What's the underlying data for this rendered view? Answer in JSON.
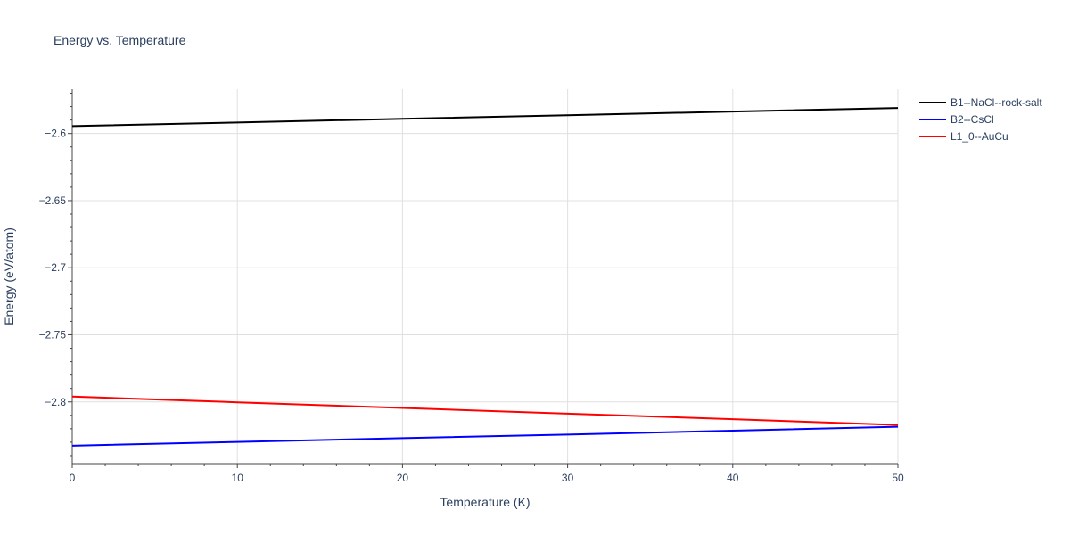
{
  "chart_data": {
    "type": "line",
    "title": "Energy vs. Temperature",
    "xlabel": "Temperature (K)",
    "ylabel": "Energy (eV/atom)",
    "xlim": [
      0,
      50
    ],
    "ylim": [
      -2.846,
      -2.567
    ],
    "x_ticks": [
      0,
      10,
      20,
      30,
      40,
      50
    ],
    "x_tick_labels": [
      "0",
      "10",
      "20",
      "30",
      "40",
      "50"
    ],
    "y_ticks": [
      -2.6,
      -2.65,
      -2.7,
      -2.75,
      -2.8
    ],
    "y_tick_labels": [
      "−2.6",
      "−2.65",
      "−2.7",
      "−2.75",
      "−2.8"
    ],
    "grid": true,
    "legend_position": "top-right outside",
    "series": [
      {
        "name": "B1--NaCl--rock-salt",
        "color": "#000000",
        "x": [
          0,
          10,
          20,
          30,
          40,
          50
        ],
        "values": [
          -2.5945,
          -2.5918,
          -2.5891,
          -2.5864,
          -2.5837,
          -2.581
        ]
      },
      {
        "name": "B2--CsCl",
        "color": "#0000ff",
        "x": [
          0,
          10,
          20,
          30,
          40,
          50
        ],
        "values": [
          -2.8326,
          -2.8298,
          -2.827,
          -2.8243,
          -2.8214,
          -2.8185
        ]
      },
      {
        "name": "L1_0--AuCu",
        "color": "#ff0000",
        "x": [
          0,
          10,
          20,
          30,
          40,
          50
        ],
        "values": [
          -2.796,
          -2.8003,
          -2.8045,
          -2.8087,
          -2.8129,
          -2.8172
        ]
      }
    ]
  }
}
